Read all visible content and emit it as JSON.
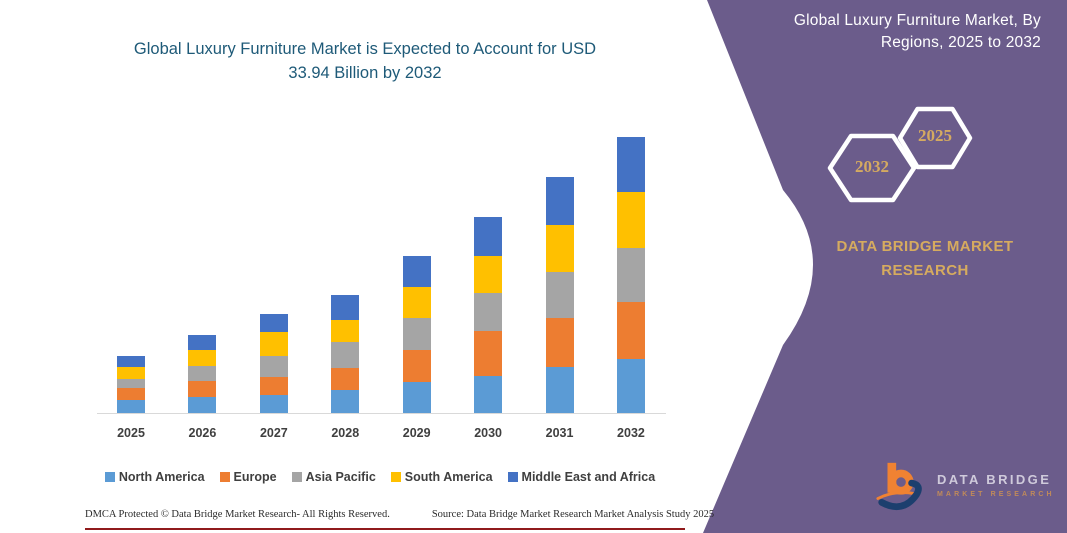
{
  "headline": {
    "line1": "Global Luxury Furniture Market is Expected to Account for USD",
    "line2": "33.94 Billion by 2032",
    "full": "Global Luxury Furniture Market is Expected to Account for USD 33.94 Billion by 2032"
  },
  "chart_data": {
    "type": "bar",
    "stacked": true,
    "unit": "USD Billion",
    "categories": [
      "2025",
      "2026",
      "2027",
      "2028",
      "2029",
      "2030",
      "2031",
      "2032"
    ],
    "series": [
      {
        "name": "North America",
        "color": "#5B9BD5",
        "values": [
          1.64,
          1.96,
          2.17,
          2.78,
          3.8,
          4.61,
          5.72,
          6.61
        ]
      },
      {
        "name": "Europe",
        "color": "#ED7D31",
        "values": [
          1.47,
          2.04,
          2.33,
          2.78,
          3.95,
          5.42,
          5.91,
          7.06
        ]
      },
      {
        "name": "Asia Pacific",
        "color": "#A5A5A5",
        "values": [
          1.1,
          1.84,
          2.57,
          3.13,
          3.9,
          4.74,
          5.72,
          6.66
        ]
      },
      {
        "name": "South America",
        "color": "#FFC000",
        "values": [
          1.51,
          1.96,
          2.85,
          2.74,
          3.85,
          4.49,
          5.72,
          6.8
        ]
      },
      {
        "name": "Middle East and Africa",
        "color": "#4472C4",
        "values": [
          1.35,
          1.84,
          2.29,
          3.06,
          3.84,
          4.9,
          6.0,
          6.81
        ]
      }
    ],
    "totals": [
      7.07,
      9.64,
      12.21,
      14.49,
      19.34,
      24.16,
      29.07,
      33.94
    ],
    "ylim": [
      0,
      36
    ],
    "grid": false,
    "legend_position": "bottom",
    "axis_line_color": "#D9D9D9"
  },
  "footer": {
    "dmca": "DMCA Protected © Data Bridge Market Research-  All Rights Reserved.",
    "source": "Source: Data Bridge Market Research  Market Analysis Study 2025"
  },
  "panel": {
    "title_line1": "Global Luxury Furniture Market, By",
    "title_line2": "Regions, 2025 to 2032",
    "background": "#6B5C8B",
    "accent_gold": "#D5AA60",
    "hexagons": [
      {
        "year": "2032"
      },
      {
        "year": "2025"
      }
    ],
    "brand": "DATA BRIDGE MARKET RESEARCH",
    "logo": {
      "name": "DATA BRIDGE",
      "tagline": "MARKET RESEARCH"
    }
  }
}
